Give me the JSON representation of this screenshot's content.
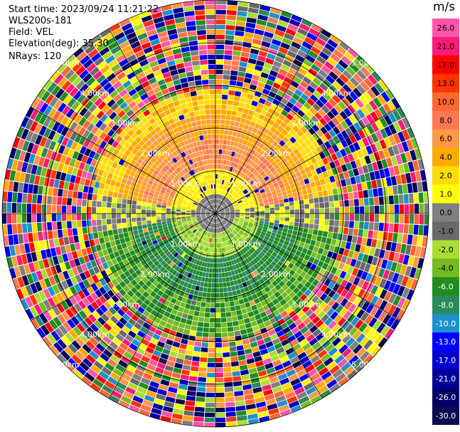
{
  "info": {
    "start_time": "Start time: 2023/09/24 11:21:22",
    "instrument": "WLS200s-181",
    "field": "Field: VEL",
    "elevation": "Elevation(deg): 35.30",
    "nrays": "NRays: 120"
  },
  "chart_data": {
    "type": "heatmap",
    "projection": "polar PPI",
    "field": "VEL",
    "units": "m/s",
    "nrays": 120,
    "range_rings_km": [
      1.0,
      2.0,
      3.0,
      4.0,
      5.0
    ],
    "range_labels": [
      "1.00km",
      "2.00km",
      "3.00km",
      "4.00km",
      "5.00km"
    ],
    "colorbar": {
      "unit": "m/s",
      "levels": [
        26.0,
        21.0,
        17.0,
        13.0,
        10.0,
        8.0,
        6.0,
        4.0,
        2.0,
        1.0,
        0.0,
        -1.0,
        -2.0,
        -4.0,
        -6.0,
        -8.0,
        -10.0,
        -13.0,
        -17.0,
        -21.0,
        -26.0,
        -30.0
      ],
      "tick_labels": [
        "26.0",
        "21.0",
        "17.0",
        "13.0",
        "10.0",
        "8.0",
        "6.0",
        "4.0",
        "2.0",
        "1.0",
        "0.0",
        "-1.0",
        "-2.0",
        "-4.0",
        "-6.0",
        "-8.0",
        "-10.0",
        "-13.0",
        "-17.0",
        "-21.0",
        "-26.0",
        "-30.0"
      ],
      "colors": [
        "#ff55aa",
        "#ff1a75",
        "#ff0000",
        "#ff3300",
        "#ff6633",
        "#ff7755",
        "#ff9944",
        "#ffaa00",
        "#ffdd00",
        "#ffff00",
        "#808080",
        "#696969",
        "#aadd33",
        "#77bb22",
        "#228b22",
        "#2a8a5a",
        "#1e90cc",
        "#0000ff",
        "#0000cc",
        "#000099",
        "#000066",
        "#0a0a50"
      ]
    },
    "regions": [
      {
        "range_km": [
          0,
          2.6
        ],
        "azimuth_deg": [
          285,
          75
        ],
        "mean_velocity": 5.0
      },
      {
        "range_km": [
          0,
          0.5
        ],
        "azimuth_deg": [
          0,
          360
        ],
        "mean_velocity": 0.0
      },
      {
        "range_km": [
          0,
          2.8
        ],
        "azimuth_deg": [
          100,
          260
        ],
        "mean_velocity": -5.0
      },
      {
        "range_km": [
          2.8,
          5.2
        ],
        "azimuth_deg": [
          0,
          360
        ],
        "mean_velocity": "noise"
      }
    ]
  }
}
